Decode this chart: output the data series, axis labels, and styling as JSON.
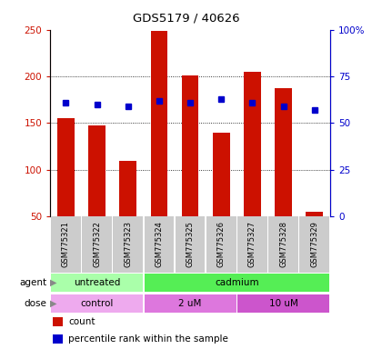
{
  "title": "GDS5179 / 40626",
  "samples": [
    "GSM775321",
    "GSM775322",
    "GSM775323",
    "GSM775324",
    "GSM775325",
    "GSM775326",
    "GSM775327",
    "GSM775328",
    "GSM775329"
  ],
  "counts": [
    155,
    147,
    109,
    249,
    201,
    140,
    205,
    187,
    55
  ],
  "percentile_ranks": [
    61,
    60,
    59,
    62,
    61,
    63,
    61,
    59,
    57
  ],
  "ylim_left": [
    50,
    250
  ],
  "ylim_right": [
    0,
    100
  ],
  "yticks_left": [
    50,
    100,
    150,
    200,
    250
  ],
  "yticks_right": [
    0,
    25,
    50,
    75,
    100
  ],
  "ytick_labels_right": [
    "0",
    "25",
    "50",
    "75",
    "100%"
  ],
  "bar_color": "#cc1100",
  "dot_color": "#0000cc",
  "grid_color": "#000000",
  "agent_row": [
    {
      "label": "untreated",
      "start": 0,
      "end": 3,
      "color": "#aaffaa"
    },
    {
      "label": "cadmium",
      "start": 3,
      "end": 9,
      "color": "#55ee55"
    }
  ],
  "dose_row": [
    {
      "label": "control",
      "start": 0,
      "end": 3,
      "color": "#eeaaee"
    },
    {
      "label": "2 uM",
      "start": 3,
      "end": 6,
      "color": "#dd77dd"
    },
    {
      "label": "10 uM",
      "start": 6,
      "end": 9,
      "color": "#cc55cc"
    }
  ],
  "sample_bg_color": "#cccccc",
  "legend_items": [
    {
      "color": "#cc1100",
      "label": "count"
    },
    {
      "color": "#0000cc",
      "label": "percentile rank within the sample"
    }
  ],
  "figsize": [
    4.1,
    3.84
  ],
  "dpi": 100
}
